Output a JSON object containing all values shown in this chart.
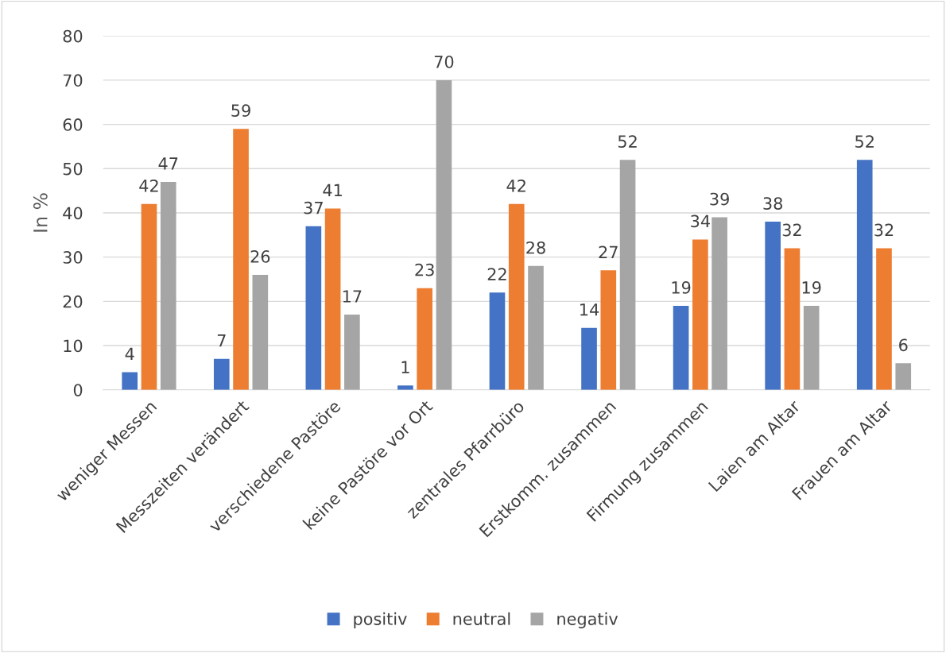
{
  "chart_data": {
    "type": "bar",
    "ylabel": "In %",
    "categories": [
      "weniger Messen",
      "Messzeiten verändert",
      "verschiedene Pastöre",
      "keine Pastöre vor Ort",
      "zentrales Pfarrbüro",
      "Erstkomm. zusammen",
      "Firmung zusammen",
      "Laien am Altar",
      "Frauen am Altar"
    ],
    "series": [
      {
        "name": "positiv",
        "color": "#4472c4",
        "values": [
          4,
          7,
          37,
          1,
          22,
          14,
          19,
          38,
          52
        ]
      },
      {
        "name": "neutral",
        "color": "#ed7d31",
        "values": [
          42,
          59,
          41,
          23,
          42,
          27,
          34,
          32,
          32
        ]
      },
      {
        "name": "negativ",
        "color": "#a5a5a5",
        "values": [
          47,
          26,
          17,
          70,
          28,
          52,
          39,
          19,
          6
        ]
      }
    ],
    "ylim": [
      0,
      80
    ],
    "yticks": [
      0,
      10,
      20,
      30,
      40,
      50,
      60,
      70,
      80
    ],
    "grid": "y",
    "legend": "bottom",
    "data_labels": true
  }
}
